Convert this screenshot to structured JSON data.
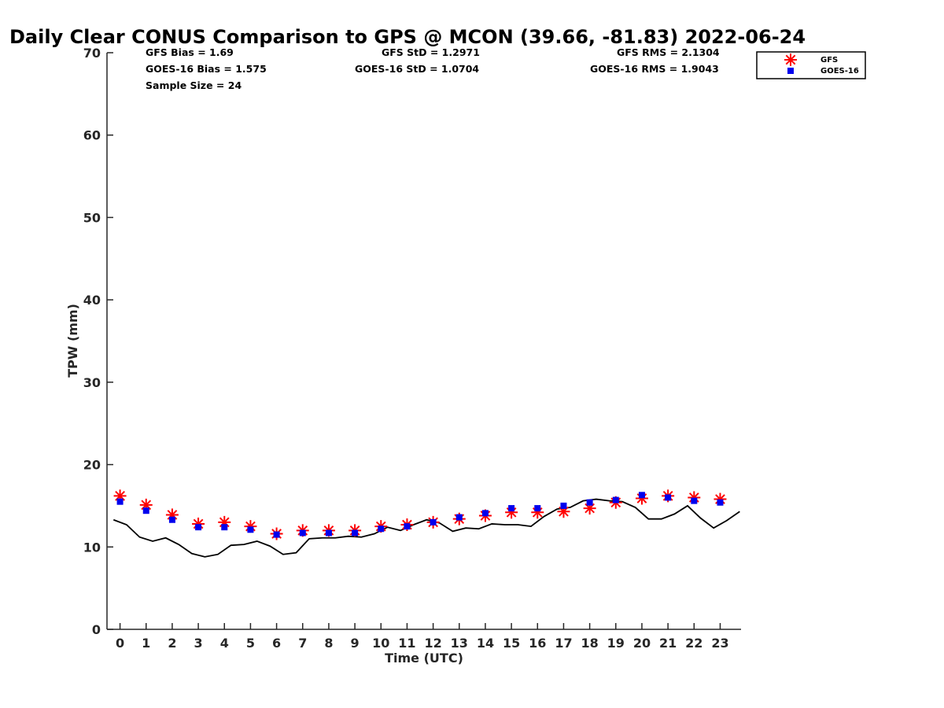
{
  "chart_data": {
    "type": "line",
    "title": "Daily Clear CONUS Comparison to GPS @ MCON (39.66, -81.83) 2022-06-24",
    "xlabel": "Time (UTC)",
    "ylabel": "TPW (mm)",
    "xlim": [
      -0.5,
      23.8
    ],
    "ylim": [
      0,
      70
    ],
    "x_ticks": [
      "0",
      "1",
      "2",
      "3",
      "4",
      "5",
      "6",
      "7",
      "8",
      "9",
      "10",
      "11",
      "12",
      "13",
      "14",
      "15",
      "16",
      "17",
      "18",
      "19",
      "20",
      "21",
      "22",
      "23"
    ],
    "y_ticks": [
      "0",
      "10",
      "20",
      "30",
      "40",
      "50",
      "60",
      "70"
    ],
    "stats": {
      "gfs_bias": "GFS Bias = 1.69",
      "goes_bias": "GOES-16 Bias = 1.575",
      "sample_size": "Sample Size = 24",
      "gfs_std": "GFS StD = 1.2971",
      "goes_std": "GOES-16 StD = 1.0704",
      "gfs_rms": "GFS RMS = 2.1304",
      "goes_rms": "GOES-16 RMS = 1.9043"
    },
    "legend": {
      "position": "top-right",
      "entries": [
        "GFS",
        "GOES-16"
      ]
    },
    "series": [
      {
        "name": "GPS",
        "style": "line",
        "color": "#000000",
        "x": [
          -0.25,
          0.25,
          0.75,
          1.25,
          1.75,
          2.25,
          2.75,
          3.25,
          3.75,
          4.25,
          4.75,
          5.25,
          5.75,
          6.25,
          6.75,
          7.25,
          7.75,
          8.25,
          8.75,
          9.25,
          9.75,
          10.25,
          10.75,
          11.25,
          11.75,
          12.25,
          12.75,
          13.25,
          13.75,
          14.25,
          14.75,
          15.25,
          15.75,
          16.25,
          16.75,
          17.25,
          17.75,
          18.25,
          18.75,
          19.25,
          19.75,
          20.25,
          20.75,
          21.25,
          21.75,
          22.25,
          22.75,
          23.25,
          23.75
        ],
        "y": [
          13.3,
          12.7,
          11.2,
          10.7,
          11.1,
          10.3,
          9.2,
          8.8,
          9.1,
          10.2,
          10.3,
          10.7,
          10.1,
          9.1,
          9.3,
          11.0,
          11.1,
          11.1,
          11.3,
          11.2,
          11.6,
          12.4,
          12.0,
          12.7,
          13.3,
          12.9,
          11.9,
          12.3,
          12.2,
          12.8,
          12.7,
          12.7,
          12.5,
          13.7,
          14.6,
          14.8,
          15.6,
          15.8,
          15.6,
          15.5,
          14.8,
          13.4,
          13.4,
          14.0,
          15.0,
          13.5,
          12.3,
          13.2,
          14.3
        ]
      },
      {
        "name": "GFS",
        "style": "asterisk",
        "color": "#ff0000",
        "x": [
          0,
          1,
          2,
          3,
          4,
          5,
          6,
          7,
          8,
          9,
          10,
          11,
          12,
          13,
          14,
          15,
          16,
          17,
          18,
          19,
          20,
          21,
          22,
          23
        ],
        "y": [
          16.2,
          15.1,
          13.9,
          12.8,
          13.0,
          12.5,
          11.6,
          12.0,
          12.0,
          12.0,
          12.5,
          12.7,
          13.0,
          13.4,
          13.8,
          14.2,
          14.2,
          14.3,
          14.7,
          15.4,
          15.9,
          16.2,
          16.0,
          15.8
        ]
      },
      {
        "name": "GOES-16",
        "style": "square",
        "color": "#0000ee",
        "x": [
          0,
          1,
          2,
          3,
          4,
          5,
          6,
          7,
          8,
          9,
          10,
          11,
          12,
          13,
          14,
          15,
          16,
          17,
          18,
          19,
          20,
          21,
          22,
          23
        ],
        "y": [
          15.5,
          14.4,
          13.3,
          12.4,
          12.4,
          12.1,
          11.5,
          11.7,
          11.7,
          11.7,
          12.2,
          12.5,
          13.0,
          13.6,
          14.1,
          14.7,
          14.7,
          15.0,
          15.4,
          15.7,
          16.3,
          16.0,
          15.6,
          15.4
        ]
      }
    ]
  }
}
